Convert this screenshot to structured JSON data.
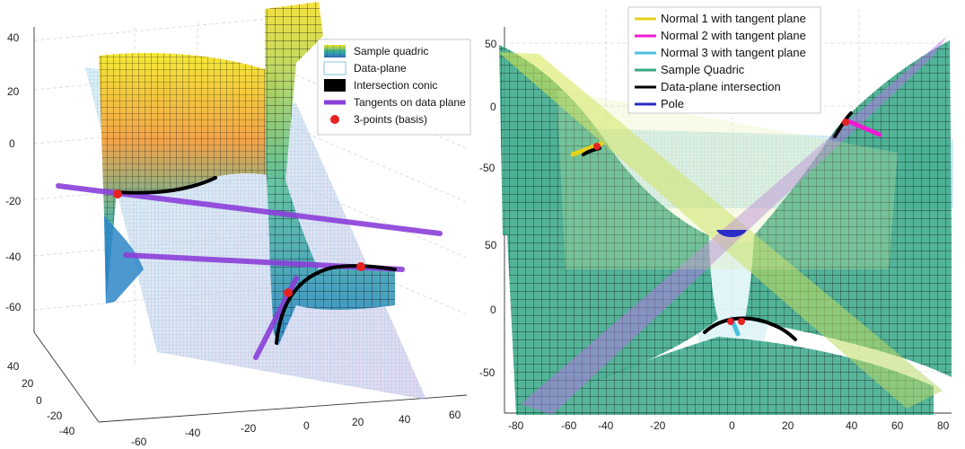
{
  "chart_data": [
    {
      "type": "surface3d",
      "panel": "left",
      "title": "",
      "z_ticks": [
        "40",
        "20",
        "0",
        "-20",
        "-40",
        "-60"
      ],
      "y_ticks": [
        "40",
        "20",
        "0",
        "-20",
        "-40"
      ],
      "x_ticks": [
        "-60",
        "-40",
        "-20",
        "0",
        "20",
        "40",
        "60"
      ],
      "legend": [
        {
          "label": "Sample quadric",
          "swatch": "surface"
        },
        {
          "label": "Data-plane",
          "swatch": "plane"
        },
        {
          "label": "Intersection conic",
          "swatch": "conic"
        },
        {
          "label": "Tangents on data plane",
          "swatch": "tangent"
        },
        {
          "label": "3-points (basis)",
          "swatch": "point"
        }
      ],
      "legend_position": "top-right"
    },
    {
      "type": "surface3d",
      "panel": "right",
      "title": "",
      "y_ticks": [
        "50",
        "0",
        "-50",
        "50",
        "0",
        "-50"
      ],
      "x_ticks": [
        "-80",
        "-60",
        "-40",
        "-20",
        "0",
        "20",
        "40",
        "60",
        "80"
      ],
      "legend": [
        {
          "label": "Normal 1 with tangent plane",
          "color": "#e6d21a"
        },
        {
          "label": "Normal 2 with tangent plane",
          "color": "#f01ad2"
        },
        {
          "label": "Normal 3 with tangent plane",
          "color": "#4dbfe0"
        },
        {
          "label": "Sample Quadric",
          "color": "#3aa889"
        },
        {
          "label": "Data-plane intersection",
          "color": "#000000"
        },
        {
          "label": "Pole",
          "color": "#2b2bc8"
        }
      ],
      "legend_position": "top"
    }
  ]
}
